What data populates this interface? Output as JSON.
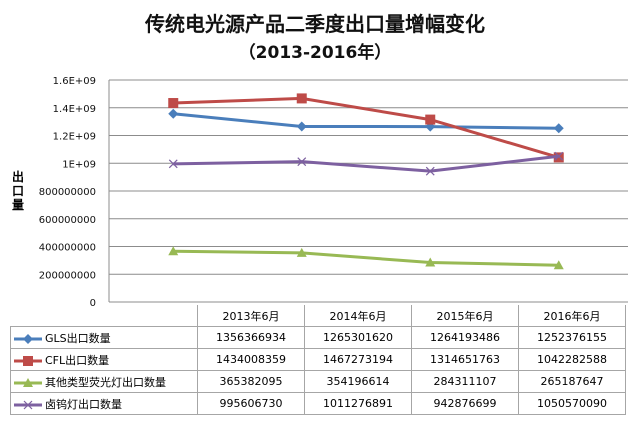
{
  "chart_data": {
    "type": "line",
    "title": "传统电光源产品二季度出口量增幅变化",
    "subtitle": "（2013-2016年）",
    "ylabel": "出口量",
    "xlabel": "",
    "categories": [
      "2013年6月",
      "2014年6月",
      "2015年6月",
      "2016年6月"
    ],
    "ylim": [
      0,
      1600000000
    ],
    "yticks": [
      "0",
      "200000000",
      "400000000",
      "600000000",
      "800000000",
      "1E+09",
      "1.2E+09",
      "1.4E+09",
      "1.6E+09"
    ],
    "grid": true,
    "legend": "data-table-below",
    "series": [
      {
        "name": "GLS出口数量",
        "color": "#4a7ebb",
        "marker": "diamond",
        "values": [
          1356366934,
          1265301620,
          1264193486,
          1252376155
        ]
      },
      {
        "name": "CFL出口数量",
        "color": "#be4b48",
        "marker": "square",
        "values": [
          1434008359,
          1467273194,
          1314651763,
          1042282588
        ]
      },
      {
        "name": "其他类型荧光灯出口数量",
        "color": "#98b954",
        "marker": "triangle",
        "values": [
          365382095,
          354196614,
          284311107,
          265187647
        ]
      },
      {
        "name": "卤钨灯出口数量",
        "color": "#7d60a0",
        "marker": "x",
        "values": [
          995606730,
          1011276891,
          942876699,
          1050570090
        ]
      }
    ]
  }
}
